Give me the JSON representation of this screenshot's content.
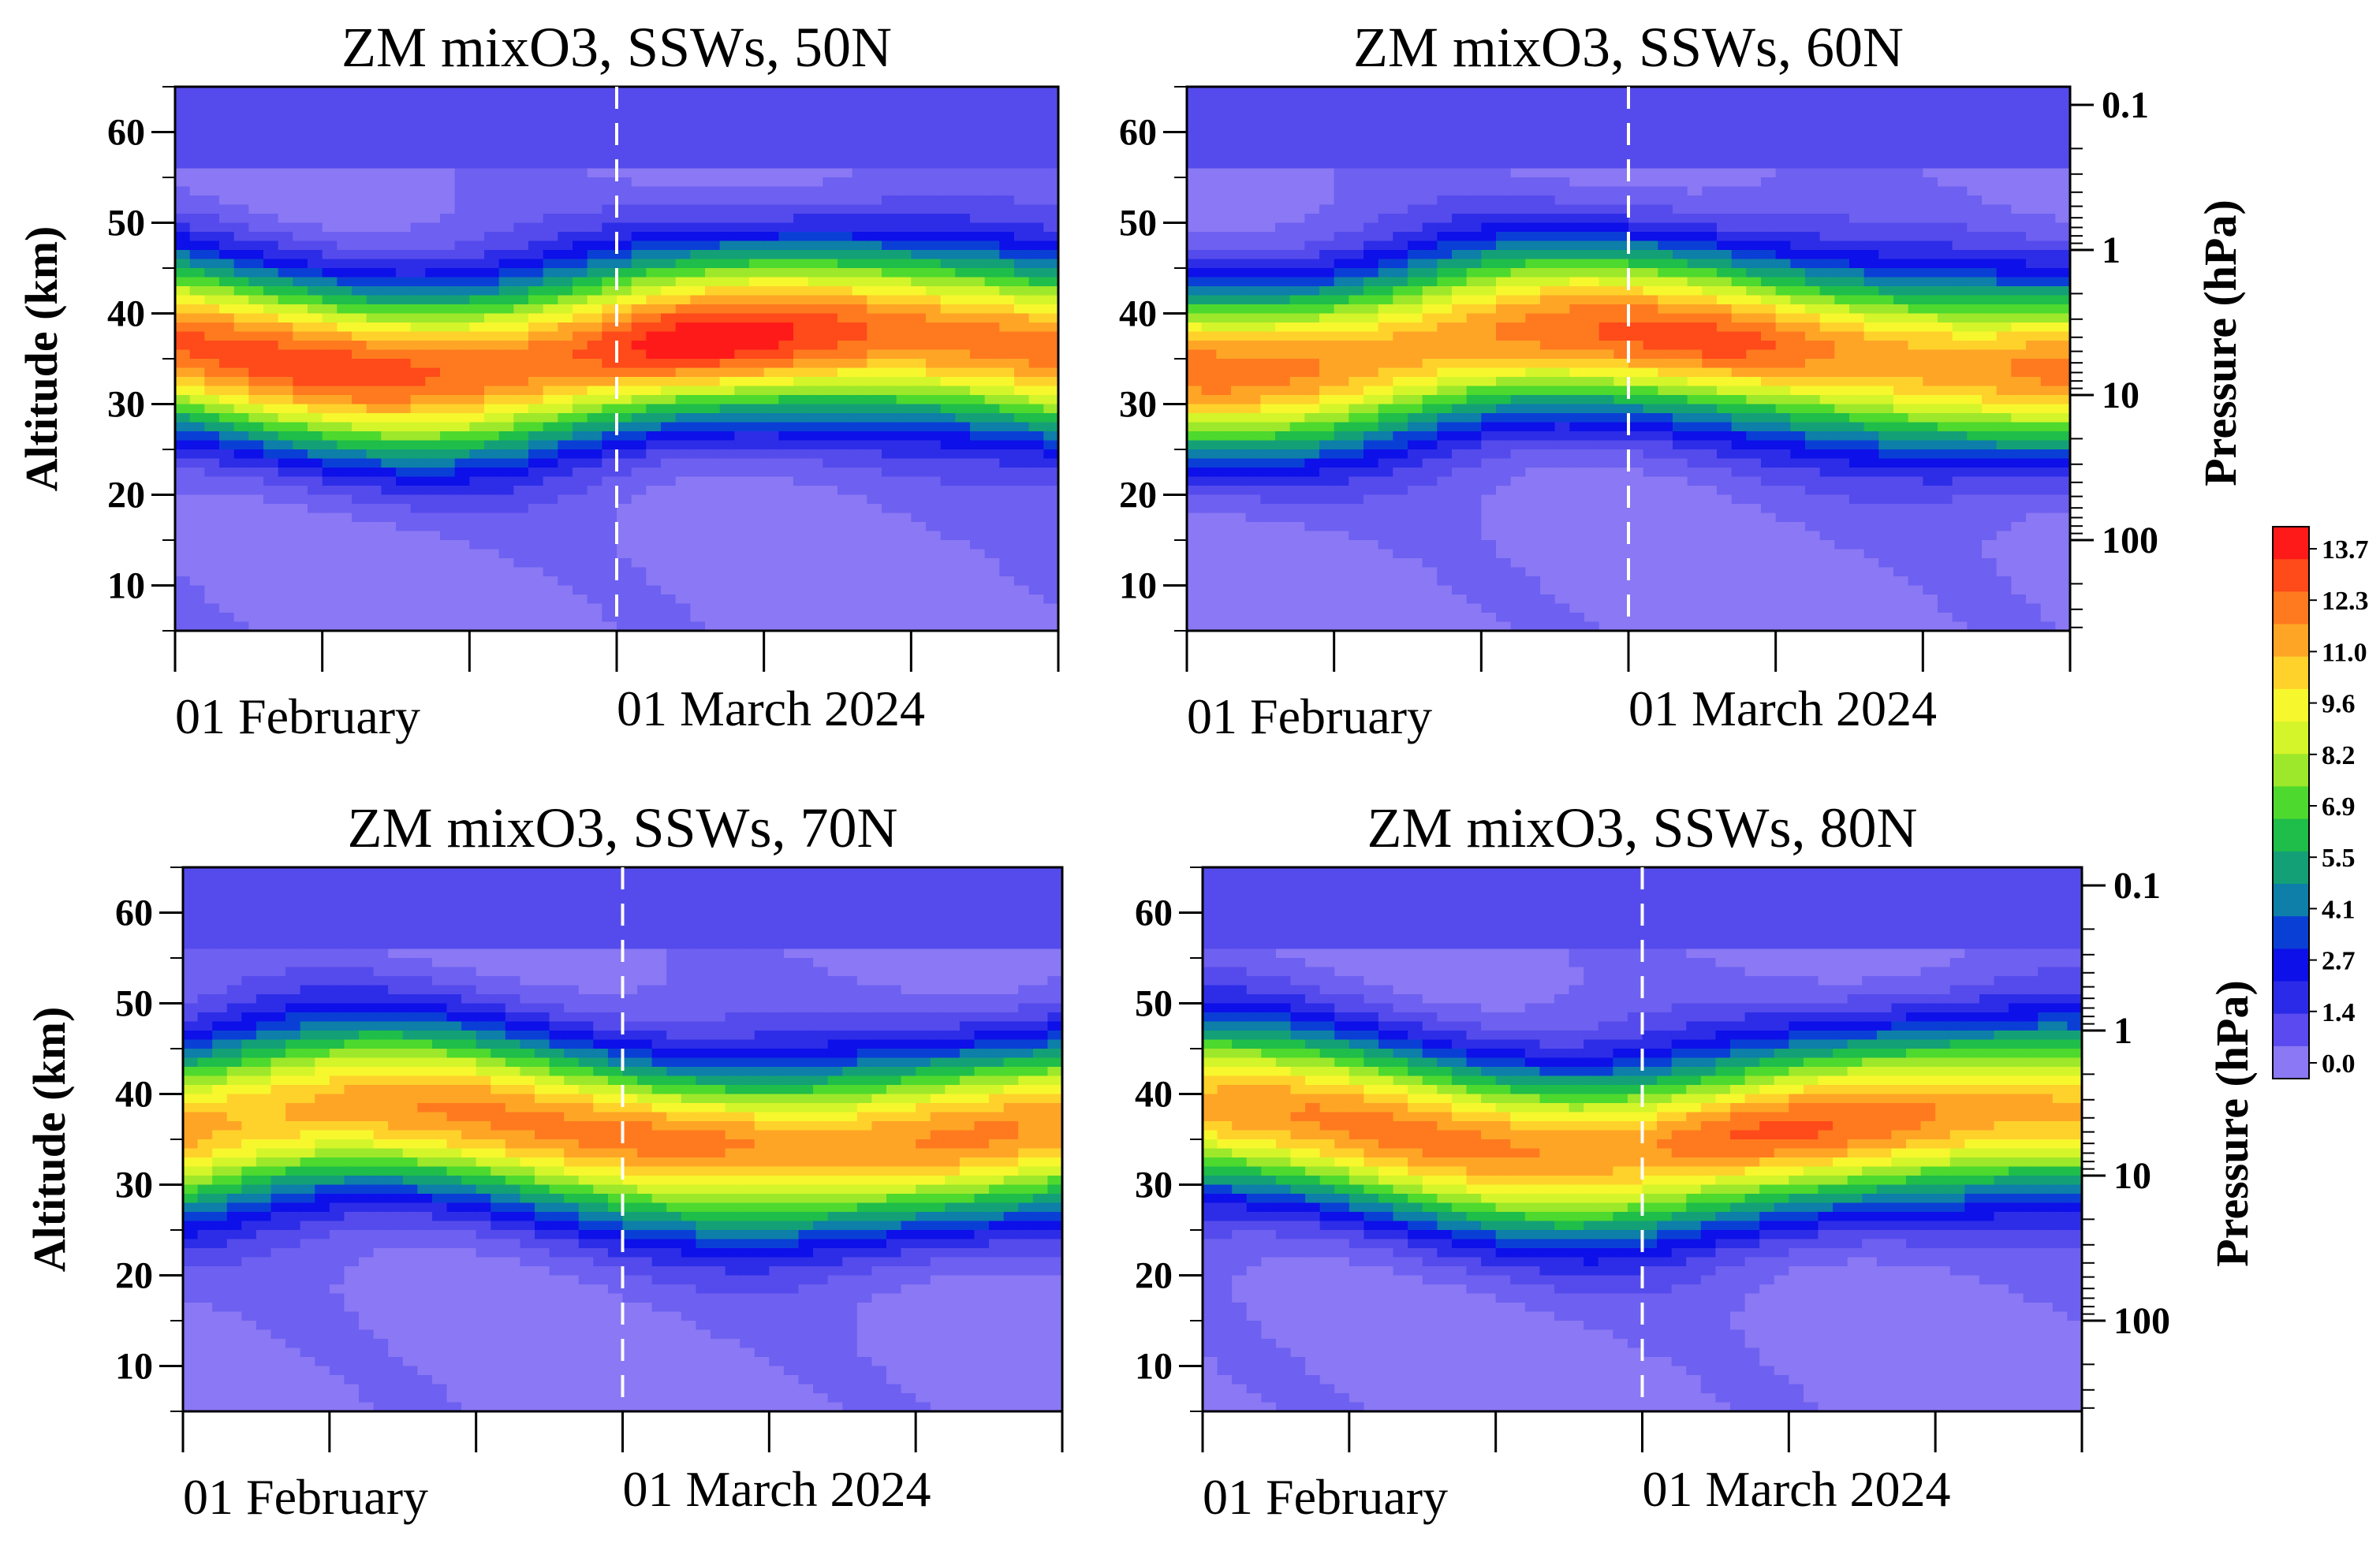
{
  "chart_data": {
    "type": "heatmap",
    "colorbar": {
      "ticks": [
        "13.7",
        "12.3",
        "11.0",
        "9.6",
        "8.2",
        "6.9",
        "5.5",
        "4.1",
        "2.7",
        "1.4",
        "0.0"
      ],
      "colors": [
        "#ff1a1a",
        "#ff4a1a",
        "#ff7a1f",
        "#ffa526",
        "#ffd22b",
        "#f7f72e",
        "#d4f52a",
        "#9de82a",
        "#4ed92e",
        "#1fbd4a",
        "#14a077",
        "#0d7fa8",
        "#0a3fd6",
        "#0d10e8",
        "#2a2ae8",
        "#5a4af0",
        "#8a78f4"
      ]
    },
    "panels": [
      {
        "title": "ZM mixO3, SSWs, 50N",
        "latitude": "50N",
        "left_axis_label": "Altitude (km)",
        "right_axis_label": "",
        "show_left_label": true,
        "show_pressure_ticks": false,
        "peak_intensity": 12.8
      },
      {
        "title": "ZM mixO3, SSWs, 60N",
        "latitude": "60N",
        "left_axis_label": "",
        "right_axis_label": "Pressure (hPa)",
        "show_left_label": false,
        "show_pressure_ticks": true,
        "peak_intensity": 12.0
      },
      {
        "title": "ZM mixO3, SSWs, 70N",
        "latitude": "70N",
        "left_axis_label": "Altitude (km)",
        "right_axis_label": "",
        "show_left_label": true,
        "show_pressure_ticks": false,
        "peak_intensity": 11.6
      },
      {
        "title": "ZM mixO3, SSWs, 80N",
        "latitude": "80N",
        "left_axis_label": "",
        "right_axis_label": "Pressure (hPa)",
        "show_left_label": false,
        "show_pressure_ticks": true,
        "peak_intensity": 11.8
      }
    ],
    "y_axis": {
      "label": "Altitude (km)",
      "ticks": [
        "10",
        "20",
        "30",
        "40",
        "50",
        "60"
      ],
      "range": [
        5,
        65
      ]
    },
    "pressure_axis": {
      "label": "Pressure (hPa)",
      "ticks": [
        "0.1",
        "1",
        "10",
        "100"
      ]
    },
    "x_axis": {
      "tick_labels": [
        "01 February",
        "01 March 2024"
      ],
      "range_days": [
        -30,
        30
      ],
      "event_day": 0
    }
  }
}
